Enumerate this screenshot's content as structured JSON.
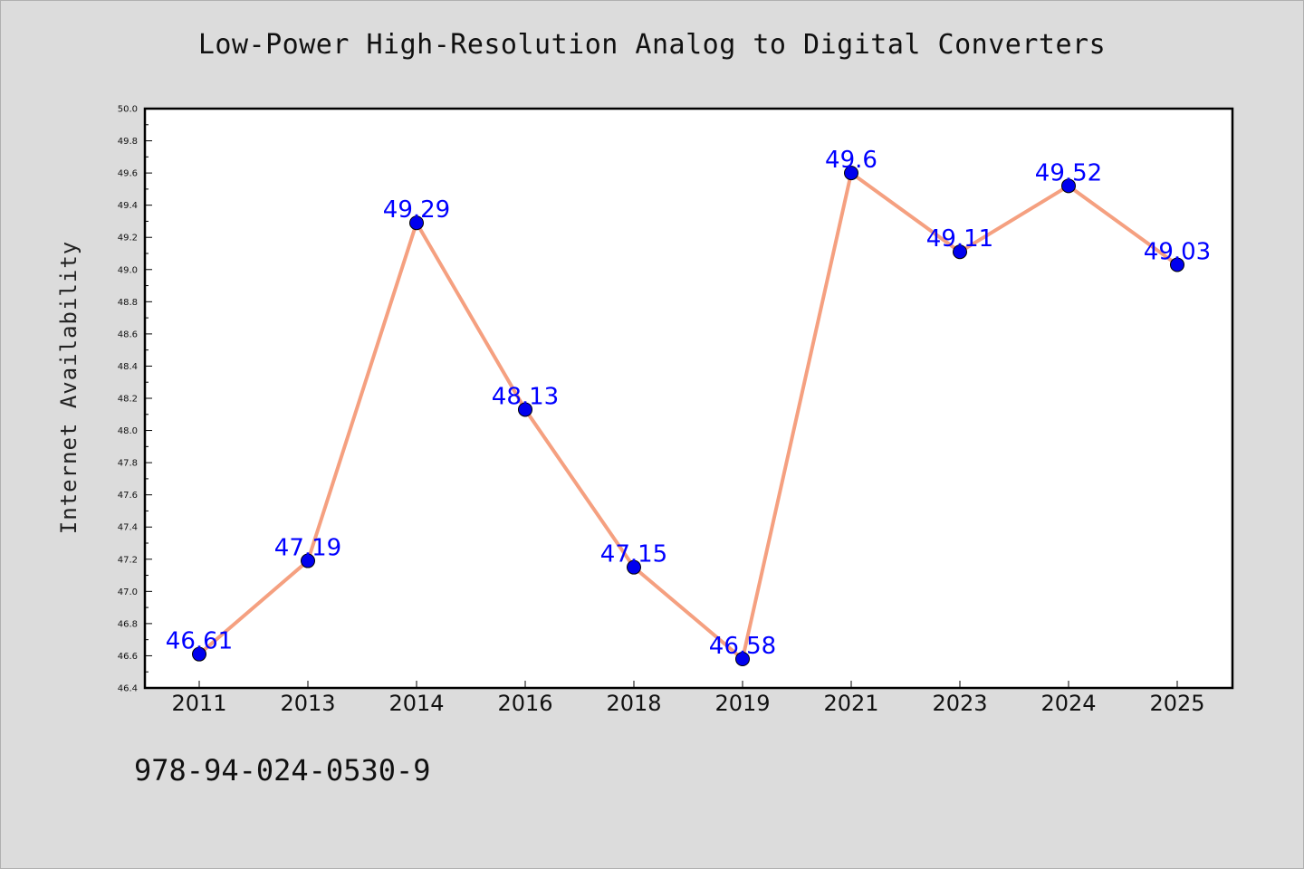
{
  "chart_data": {
    "type": "line",
    "title": "Low-Power High-Resolution Analog to Digital Converters",
    "xlabel": "",
    "ylabel": "Internet Availability",
    "categories": [
      "2011",
      "2013",
      "2014",
      "2016",
      "2018",
      "2019",
      "2021",
      "2023",
      "2024",
      "2025"
    ],
    "series": [
      {
        "values": [
          46.61,
          47.19,
          49.29,
          48.13,
          47.15,
          46.58,
          49.6,
          49.11,
          49.52,
          49.03
        ],
        "labels": [
          "46.61",
          "47.19",
          "49.29",
          "48.13",
          "47.15",
          "46.58",
          "49.6",
          "49.11",
          "49.52",
          "49.03"
        ],
        "line_color": "#f5a080",
        "marker_color": "#0000ee"
      }
    ],
    "ylim": [
      46.4,
      50.0
    ],
    "yticks": [
      "46.4",
      "46.6",
      "46.8",
      "47.0",
      "47.2",
      "47.4",
      "47.6",
      "47.8",
      "48.0",
      "48.2",
      "48.4",
      "48.6",
      "48.8",
      "49.0",
      "49.2",
      "49.4",
      "49.6",
      "49.8",
      "50.0"
    ],
    "grid": false,
    "legend": "none"
  },
  "footer": {
    "isbn": "978-94-024-0530-9"
  },
  "colors": {
    "background": "#dcdcdc",
    "plot_background": "#ffffff",
    "label_color": "#0000ff"
  }
}
